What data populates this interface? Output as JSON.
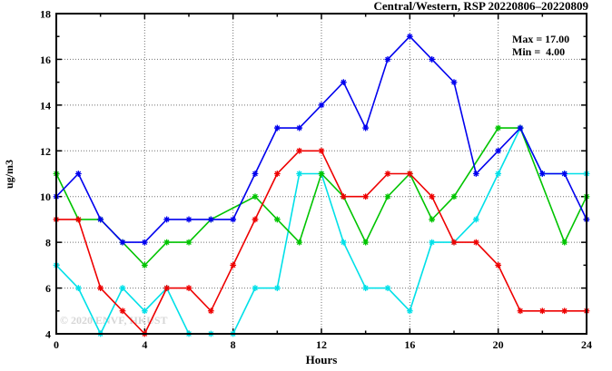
{
  "title": "Central/Western, RSP 20220806–20220809",
  "xlabel": "Hours",
  "ylabel": "ug/m3",
  "annotation": {
    "max_label": "Max = 17.00",
    "min_label": "Min =  4.00"
  },
  "watermark": "© 2020 ENVF, HKUST",
  "axes": {
    "x_tick_labels": [
      "0",
      "4",
      "8",
      "12",
      "16",
      "20",
      "24"
    ],
    "y_tick_labels": [
      "4",
      "6",
      "8",
      "10",
      "12",
      "14",
      "16",
      "18"
    ]
  },
  "chart_data": {
    "type": "line",
    "title": "Central/Western, RSP 20220806–20220809",
    "xlabel": "Hours",
    "ylabel": "ug/m3",
    "xlim": [
      0,
      24
    ],
    "ylim": [
      4,
      18
    ],
    "x_major_ticks": [
      0,
      4,
      8,
      12,
      16,
      20,
      24
    ],
    "x_minor_ticks": [
      2,
      6,
      10,
      14,
      18,
      22
    ],
    "y_major_ticks": [
      4,
      6,
      8,
      10,
      12,
      14,
      16,
      18
    ],
    "y_minor_ticks": [
      5,
      7,
      9,
      11,
      13,
      15,
      17
    ],
    "x_gridlines": [
      4,
      8,
      12,
      16,
      20
    ],
    "y_gridlines": [
      6,
      8,
      10,
      12,
      14,
      16
    ],
    "grid": "dotted",
    "legend_position": "none",
    "annotations": [
      "Max = 17.00",
      "Min =  4.00"
    ],
    "series": [
      {
        "name": "cyan",
        "color": "#00e0e8",
        "points": [
          [
            0,
            7
          ],
          [
            1,
            6
          ],
          [
            2,
            4
          ],
          [
            3,
            6
          ],
          [
            4,
            5
          ],
          [
            5,
            6
          ],
          [
            6,
            4
          ],
          [
            7,
            4
          ],
          [
            8,
            4
          ],
          [
            9,
            6
          ],
          [
            10,
            6
          ],
          [
            11,
            11
          ],
          [
            12,
            11
          ],
          [
            13,
            8
          ],
          [
            14,
            6
          ],
          [
            15,
            6
          ],
          [
            16,
            5
          ],
          [
            17,
            8
          ],
          [
            18,
            8
          ],
          [
            19,
            9
          ],
          [
            20,
            11
          ],
          [
            21,
            13
          ],
          [
            22,
            11
          ],
          [
            23,
            11
          ],
          [
            24,
            11
          ]
        ]
      },
      {
        "name": "green",
        "color": "#00c400",
        "points": [
          [
            0,
            11
          ],
          [
            1,
            9
          ],
          [
            2,
            9
          ],
          [
            3,
            8
          ],
          [
            4,
            7
          ],
          [
            5,
            8
          ],
          [
            6,
            8
          ],
          [
            7,
            9
          ],
          [
            9,
            10
          ],
          [
            10,
            9
          ],
          [
            11,
            8
          ],
          [
            12,
            11
          ],
          [
            13,
            10
          ],
          [
            14,
            8
          ],
          [
            15,
            10
          ],
          [
            16,
            11
          ],
          [
            17,
            9
          ],
          [
            18,
            10
          ],
          [
            20,
            13
          ],
          [
            21,
            13
          ],
          [
            23,
            8
          ],
          [
            24,
            10
          ]
        ]
      },
      {
        "name": "red",
        "color": "#ee0000",
        "points": [
          [
            0,
            9
          ],
          [
            1,
            9
          ],
          [
            2,
            6
          ],
          [
            3,
            5
          ],
          [
            4,
            4
          ],
          [
            5,
            6
          ],
          [
            6,
            6
          ],
          [
            7,
            5
          ],
          [
            8,
            7
          ],
          [
            9,
            9
          ],
          [
            10,
            11
          ],
          [
            11,
            12
          ],
          [
            12,
            12
          ],
          [
            13,
            10
          ],
          [
            14,
            10
          ],
          [
            15,
            11
          ],
          [
            16,
            11
          ],
          [
            17,
            10
          ],
          [
            18,
            8
          ],
          [
            19,
            8
          ],
          [
            20,
            7
          ],
          [
            21,
            5
          ],
          [
            22,
            5
          ],
          [
            23,
            5
          ],
          [
            24,
            5
          ]
        ]
      },
      {
        "name": "blue",
        "color": "#0000ee",
        "points": [
          [
            0,
            10
          ],
          [
            1,
            11
          ],
          [
            2,
            9
          ],
          [
            3,
            8
          ],
          [
            4,
            8
          ],
          [
            5,
            9
          ],
          [
            6,
            9
          ],
          [
            7,
            9
          ],
          [
            8,
            9
          ],
          [
            9,
            11
          ],
          [
            10,
            13
          ],
          [
            11,
            13
          ],
          [
            12,
            14
          ],
          [
            13,
            15
          ],
          [
            14,
            13
          ],
          [
            15,
            16
          ],
          [
            16,
            17
          ],
          [
            17,
            16
          ],
          [
            18,
            15
          ],
          [
            19,
            11
          ],
          [
            20,
            12
          ],
          [
            21,
            13
          ],
          [
            22,
            11
          ],
          [
            23,
            11
          ],
          [
            24,
            9
          ]
        ]
      }
    ]
  }
}
